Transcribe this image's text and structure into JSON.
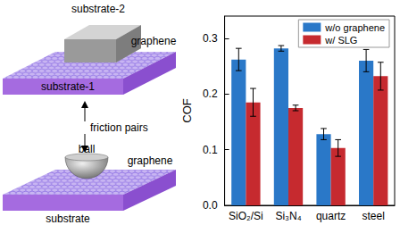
{
  "chart_data": {
    "type": "bar",
    "categories": [
      "SiO₂/Si",
      "Si₃N₄",
      "quartz",
      "steel"
    ],
    "series": [
      {
        "name": "w/o graphene",
        "color": "#2a78c8",
        "values": [
          0.262,
          0.282,
          0.128,
          0.26
        ],
        "errors": [
          0.02,
          0.005,
          0.01,
          0.02
        ]
      },
      {
        "name": "w/ SLG",
        "color": "#c62a2f",
        "values": [
          0.185,
          0.175,
          0.103,
          0.232
        ],
        "errors": [
          0.025,
          0.005,
          0.015,
          0.025
        ]
      }
    ],
    "y_label": "COF",
    "ylim": [
      0,
      0.34
    ],
    "yticks": [
      {
        "value": 0,
        "label": "0.0"
      },
      0.1,
      0.2,
      0.3
    ],
    "legend": "upper right",
    "grid": false
  },
  "diagram": {
    "top_pair": {
      "upper": "substrate-2",
      "layer": "graphene",
      "lower": "substrate-1"
    },
    "arrow_label": "friction pairs",
    "bottom_pair": {
      "upper": "ball",
      "layer": "graphene",
      "lower": "substrate"
    }
  }
}
